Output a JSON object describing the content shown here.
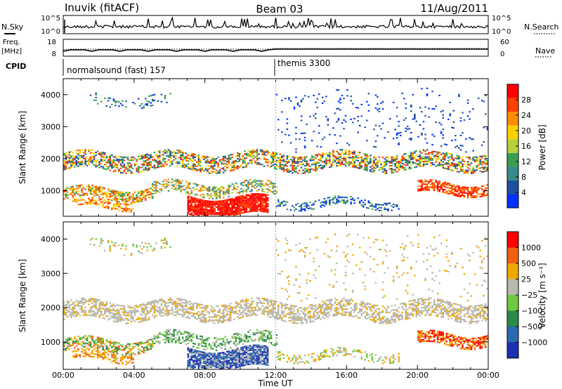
{
  "header": {
    "station": "Inuvik (fitACF)",
    "beam": "Beam 03",
    "date": "11/Aug/2011"
  },
  "panel_labels": {
    "nsky": "N.Sky",
    "nsky_ticks": [
      "10^5",
      "10^0"
    ],
    "nsearch": "N.Search",
    "freq": "Freq.",
    "freq_unit": "[MHz]",
    "freq_ticks": [
      "18",
      "8"
    ],
    "nave": "Nave",
    "nave_ticks": [
      "60",
      "0"
    ],
    "cpid": "CPID",
    "cpid_modes": [
      "normalsound (fast) 157",
      "themis 3300"
    ]
  },
  "colors": {
    "power": [
      "#0033ff",
      "#1f4fa0",
      "#3a8a8a",
      "#3aa050",
      "#b5d23a",
      "#ffd000",
      "#ff8c00",
      "#ff4000",
      "#ff0000"
    ],
    "velocity": [
      "#1e2fb0",
      "#2a6ab0",
      "#2a8a4a",
      "#6ec840",
      "#b8b8b0",
      "#f0a800",
      "#f06010",
      "#ff0000"
    ]
  },
  "chart_data": [
    {
      "type": "heatmap",
      "name": "power",
      "xlabel": "",
      "ylabel": "Slant Range [km]",
      "ylim": [
        200,
        4500
      ],
      "yticks": [
        "1000",
        "2000",
        "3000",
        "4000"
      ],
      "colorbar_label": "Power [dB]",
      "colorbar_ticks": [
        "4",
        "8",
        "12",
        "16",
        "20",
        "24",
        "28"
      ],
      "colorbar_range": [
        0,
        32
      ]
    },
    {
      "type": "heatmap",
      "name": "velocity",
      "xlabel": "Time UT",
      "ylabel": "Slant Range [km]",
      "ylim": [
        200,
        4500
      ],
      "xlim": [
        0,
        24
      ],
      "xticks": [
        "00:00",
        "04:00",
        "08:00",
        "12:00",
        "16:00",
        "20:00",
        "00:00"
      ],
      "yticks": [
        "1000",
        "2000",
        "3000",
        "4000"
      ],
      "colorbar_label": "Velocity [m s⁻¹]",
      "colorbar_ticks": [
        "1000",
        "500",
        "25",
        "−25",
        "−100",
        "−500",
        "−1000"
      ]
    }
  ]
}
